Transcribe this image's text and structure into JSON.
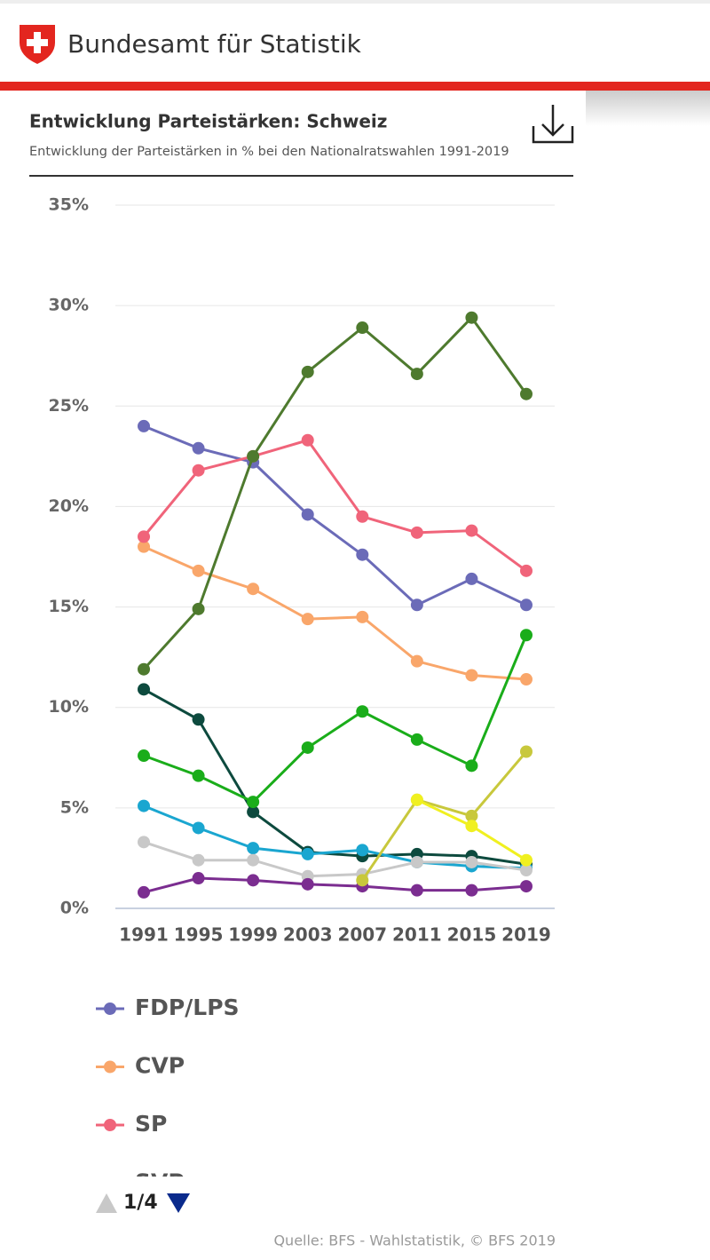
{
  "header": {
    "title": "Bundesamt für Statistik"
  },
  "chart_data": {
    "type": "line",
    "title": "Entwicklung Parteistärken: Schweiz",
    "subtitle": "Entwicklung der Parteistärken in % bei den Nationalratswahlen 1991-2019",
    "categories": [
      "1991",
      "1995",
      "1999",
      "2003",
      "2007",
      "2011",
      "2015",
      "2019"
    ],
    "ylim": [
      0,
      35
    ],
    "yticks": [
      {
        "value": 0,
        "label": "0%"
      },
      {
        "value": 5,
        "label": "5%"
      },
      {
        "value": 10,
        "label": "10%"
      },
      {
        "value": 15,
        "label": "15%"
      },
      {
        "value": 20,
        "label": "20%"
      },
      {
        "value": 25,
        "label": "25%"
      },
      {
        "value": 30,
        "label": "30%"
      },
      {
        "value": 35,
        "label": "35%"
      }
    ],
    "grid": true,
    "series": [
      {
        "name": "FDP/LPS",
        "color": "#6b6bb8",
        "values": [
          24.0,
          22.9,
          22.2,
          19.6,
          17.6,
          15.1,
          16.4,
          15.1
        ]
      },
      {
        "name": "CVP",
        "color": "#f9a66a",
        "values": [
          18.0,
          16.8,
          15.9,
          14.4,
          14.5,
          12.3,
          11.6,
          11.4
        ]
      },
      {
        "name": "SP",
        "color": "#f0647a",
        "values": [
          18.5,
          21.8,
          22.5,
          23.3,
          19.5,
          18.7,
          18.8,
          16.8
        ]
      },
      {
        "name": "SVP",
        "color": "#4e7a2e",
        "values": [
          11.9,
          14.9,
          22.5,
          26.7,
          28.9,
          26.6,
          29.4,
          25.6
        ]
      },
      {
        "color": "#0d4a3e",
        "values": [
          10.9,
          9.4,
          4.8,
          2.8,
          2.6,
          2.7,
          2.6,
          2.2
        ]
      },
      {
        "color": "#1aad1a",
        "values": [
          7.6,
          6.6,
          5.3,
          8.0,
          9.8,
          8.4,
          7.1,
          13.6
        ]
      },
      {
        "color": "#1aa6d0",
        "values": [
          5.1,
          4.0,
          3.0,
          2.7,
          2.9,
          2.3,
          2.1,
          2.0
        ]
      },
      {
        "color": "#c8c8c8",
        "values": [
          3.3,
          2.4,
          2.4,
          1.6,
          1.7,
          2.3,
          2.3,
          1.9
        ]
      },
      {
        "color": "#7b2d90",
        "values": [
          0.8,
          1.5,
          1.4,
          1.2,
          1.1,
          0.9,
          0.9,
          1.1
        ]
      },
      {
        "color": "#c8c83c",
        "values": [
          null,
          null,
          null,
          null,
          1.4,
          5.4,
          4.6,
          7.8
        ]
      },
      {
        "color": "#f0f020",
        "values": [
          null,
          null,
          null,
          null,
          null,
          5.4,
          4.1,
          2.4
        ]
      }
    ]
  },
  "legend_page": "1/4",
  "source": "Quelle: BFS - Wahlstatistik, © BFS 2019"
}
